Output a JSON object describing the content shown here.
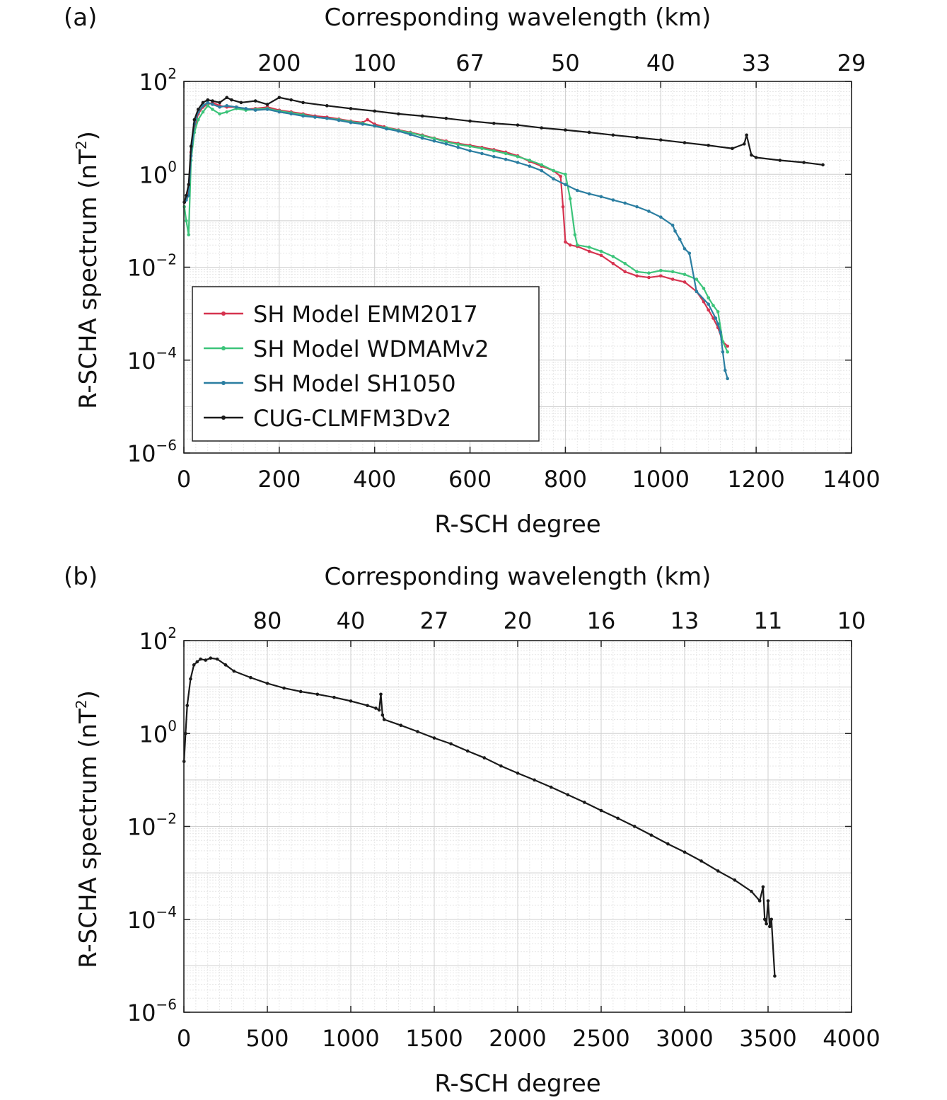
{
  "chart_data": [
    {
      "type": "line",
      "panel_label": "(a)",
      "xlabel": "R-SCH degree",
      "ylabel": "R-SCHA spectrum (nT²)",
      "ylabel_text": "R-SCHA spectrum (nT",
      "ylabel_sup": "2",
      "ylabel_close": ")",
      "top_axis_label": "Corresponding wavelength (km)",
      "xlim": [
        0,
        1400
      ],
      "ylim_log10": [
        -6,
        2
      ],
      "y_scale": "log",
      "grid": true,
      "legend_position": "lower-left",
      "x_ticks": [
        0,
        200,
        400,
        600,
        800,
        1000,
        1200,
        1400
      ],
      "y_ticks": [
        {
          "base": "10",
          "exp": "2",
          "log": 2
        },
        {
          "base": "10",
          "exp": "0",
          "log": 0
        },
        {
          "base": "10",
          "exp": "−2",
          "log": -2
        },
        {
          "base": "10",
          "exp": "−4",
          "log": -4
        },
        {
          "base": "10",
          "exp": "−6",
          "log": -6
        }
      ],
      "top_ticks": [
        {
          "x": 200,
          "label": "200"
        },
        {
          "x": 400,
          "label": "100"
        },
        {
          "x": 600,
          "label": "67"
        },
        {
          "x": 800,
          "label": "50"
        },
        {
          "x": 1000,
          "label": "40"
        },
        {
          "x": 1200,
          "label": "33"
        },
        {
          "x": 1400,
          "label": "29"
        }
      ],
      "series": [
        {
          "name": "SH Model EMM2017",
          "color": "#d6334f",
          "x": [
            1,
            5,
            10,
            15,
            22,
            30,
            40,
            50,
            60,
            75,
            90,
            110,
            130,
            150,
            175,
            200,
            225,
            250,
            275,
            300,
            325,
            350,
            375,
            385,
            400,
            420,
            450,
            475,
            500,
            525,
            550,
            575,
            600,
            625,
            650,
            675,
            700,
            725,
            750,
            775,
            790,
            795,
            800,
            810,
            825,
            850,
            875,
            900,
            925,
            950,
            975,
            1000,
            1025,
            1050,
            1075,
            1090,
            1100,
            1110,
            1120,
            1130,
            1140
          ],
          "y": [
            0.25,
            0.3,
            0.5,
            3,
            10,
            20,
            28,
            32,
            35,
            30,
            28,
            28,
            25,
            26,
            28,
            24,
            22,
            20,
            18,
            17,
            15.5,
            14,
            13,
            15,
            12,
            10.5,
            9,
            8,
            7,
            6,
            5.2,
            4.6,
            4.2,
            3.8,
            3.4,
            3.0,
            2.5,
            1.9,
            1.5,
            1.2,
            0.9,
            0.2,
            0.035,
            0.03,
            0.028,
            0.022,
            0.018,
            0.012,
            0.008,
            0.0065,
            0.006,
            0.0065,
            0.0055,
            0.0048,
            0.003,
            0.0018,
            0.0012,
            0.0008,
            0.0005,
            0.00025,
            0.0002
          ]
        },
        {
          "name": "SH Model WDMAMv2",
          "color": "#3cc47a",
          "x": [
            1,
            5,
            10,
            15,
            22,
            30,
            40,
            50,
            60,
            75,
            90,
            110,
            130,
            150,
            175,
            200,
            225,
            250,
            275,
            300,
            325,
            350,
            375,
            400,
            425,
            450,
            475,
            500,
            525,
            550,
            575,
            600,
            625,
            650,
            675,
            700,
            725,
            750,
            775,
            800,
            810,
            820,
            825,
            850,
            875,
            900,
            925,
            950,
            975,
            1000,
            1025,
            1050,
            1075,
            1090,
            1100,
            1110,
            1120,
            1130,
            1140
          ],
          "y": [
            0.2,
            0.1,
            0.05,
            2,
            8,
            15,
            22,
            30,
            25,
            20,
            22,
            26,
            24,
            25,
            26,
            23,
            21,
            19,
            17,
            16,
            15,
            13.5,
            12.5,
            11,
            10,
            8.8,
            7.8,
            6.8,
            5.9,
            5.0,
            4.4,
            4.0,
            3.6,
            3.2,
            2.8,
            2.4,
            2.0,
            1.6,
            1.2,
            1.0,
            0.3,
            0.05,
            0.03,
            0.027,
            0.022,
            0.017,
            0.012,
            0.008,
            0.0075,
            0.0085,
            0.008,
            0.007,
            0.0055,
            0.0035,
            0.0022,
            0.0015,
            0.0011,
            0.00025,
            0.00015
          ]
        },
        {
          "name": "SH Model SH1050",
          "color": "#2b7ea1",
          "x": [
            1,
            5,
            10,
            15,
            22,
            30,
            40,
            50,
            60,
            75,
            90,
            110,
            130,
            150,
            175,
            200,
            225,
            250,
            275,
            300,
            325,
            350,
            375,
            400,
            425,
            450,
            475,
            500,
            525,
            550,
            575,
            600,
            625,
            650,
            675,
            700,
            725,
            750,
            775,
            800,
            825,
            850,
            875,
            900,
            925,
            950,
            975,
            1000,
            1025,
            1030,
            1040,
            1050,
            1060,
            1075,
            1100,
            1115,
            1120,
            1125,
            1130,
            1135,
            1140
          ],
          "y": [
            0.25,
            0.28,
            0.35,
            2.5,
            12,
            22,
            30,
            35,
            32,
            28,
            30,
            28,
            26,
            24,
            25,
            22,
            20,
            18,
            17,
            16,
            14.5,
            13,
            12,
            11,
            9.5,
            8.5,
            7.2,
            6.0,
            5.2,
            4.5,
            3.8,
            3.2,
            2.8,
            2.4,
            2.1,
            1.8,
            1.5,
            1.2,
            0.8,
            0.6,
            0.45,
            0.38,
            0.33,
            0.28,
            0.24,
            0.2,
            0.16,
            0.12,
            0.08,
            0.06,
            0.04,
            0.025,
            0.02,
            0.003,
            0.0016,
            0.0008,
            0.0006,
            0.0004,
            0.00015,
            6e-05,
            4e-05
          ]
        },
        {
          "name": "CUG-CLMFM3Dv2",
          "color": "#1a1a1a",
          "x": [
            1,
            5,
            10,
            15,
            22,
            30,
            40,
            50,
            60,
            75,
            90,
            100,
            120,
            150,
            175,
            200,
            225,
            250,
            300,
            350,
            400,
            450,
            500,
            550,
            600,
            650,
            700,
            750,
            800,
            850,
            900,
            950,
            1000,
            1050,
            1100,
            1150,
            1175,
            1180,
            1190,
            1200,
            1250,
            1300,
            1340
          ],
          "y": [
            0.25,
            0.35,
            0.6,
            4,
            15,
            25,
            35,
            40,
            38,
            35,
            45,
            40,
            35,
            38,
            32,
            45,
            40,
            35,
            30,
            26,
            23,
            20,
            18,
            16,
            14,
            12.5,
            11.5,
            10,
            9,
            8,
            7,
            6.2,
            5.5,
            4.8,
            4.2,
            3.6,
            4.5,
            7.0,
            2.6,
            2.3,
            2.0,
            1.8,
            1.6
          ]
        }
      ]
    },
    {
      "type": "line",
      "panel_label": "(b)",
      "xlabel": "R-SCH degree",
      "ylabel": "R-SCHA spectrum (nT²)",
      "ylabel_text": "R-SCHA spectrum (nT",
      "ylabel_sup": "2",
      "ylabel_close": ")",
      "top_axis_label": "Corresponding wavelength (km)",
      "xlim": [
        0,
        4000
      ],
      "ylim_log10": [
        -6,
        2
      ],
      "y_scale": "log",
      "grid": true,
      "x_ticks": [
        0,
        500,
        1000,
        1500,
        2000,
        2500,
        3000,
        3500,
        4000
      ],
      "y_ticks": [
        {
          "base": "10",
          "exp": "2",
          "log": 2
        },
        {
          "base": "10",
          "exp": "0",
          "log": 0
        },
        {
          "base": "10",
          "exp": "−2",
          "log": -2
        },
        {
          "base": "10",
          "exp": "−4",
          "log": -4
        },
        {
          "base": "10",
          "exp": "−6",
          "log": -6
        }
      ],
      "top_ticks": [
        {
          "x": 500,
          "label": "80"
        },
        {
          "x": 1000,
          "label": "40"
        },
        {
          "x": 1500,
          "label": "27"
        },
        {
          "x": 2000,
          "label": "20"
        },
        {
          "x": 2500,
          "label": "16"
        },
        {
          "x": 3000,
          "label": "13"
        },
        {
          "x": 3500,
          "label": "11"
        },
        {
          "x": 4000,
          "label": "10"
        }
      ],
      "series": [
        {
          "name": "CUG-CLMFM3Dv2",
          "color": "#1a1a1a",
          "x": [
            1,
            10,
            20,
            40,
            60,
            80,
            100,
            130,
            160,
            200,
            250,
            300,
            400,
            500,
            600,
            700,
            800,
            900,
            1000,
            1100,
            1150,
            1170,
            1180,
            1190,
            1200,
            1300,
            1400,
            1500,
            1600,
            1700,
            1800,
            1900,
            2000,
            2100,
            2200,
            2300,
            2400,
            2500,
            2600,
            2700,
            2800,
            2900,
            3000,
            3100,
            3200,
            3300,
            3400,
            3450,
            3470,
            3480,
            3490,
            3500,
            3510,
            3520,
            3540
          ],
          "y": [
            0.25,
            1.0,
            4,
            15,
            30,
            35,
            40,
            38,
            42,
            40,
            30,
            22,
            16,
            12,
            9.5,
            8,
            7,
            6,
            5,
            4,
            3.5,
            3.2,
            7,
            2.5,
            2.0,
            1.5,
            1.1,
            0.8,
            0.6,
            0.42,
            0.3,
            0.2,
            0.14,
            0.1,
            0.07,
            0.048,
            0.033,
            0.022,
            0.015,
            0.01,
            0.0065,
            0.0042,
            0.0028,
            0.0018,
            0.0011,
            0.0007,
            0.0004,
            0.00025,
            0.0005,
            0.0001,
            8e-05,
            0.00025,
            7e-05,
            0.0001,
            6e-06
          ]
        }
      ]
    }
  ]
}
